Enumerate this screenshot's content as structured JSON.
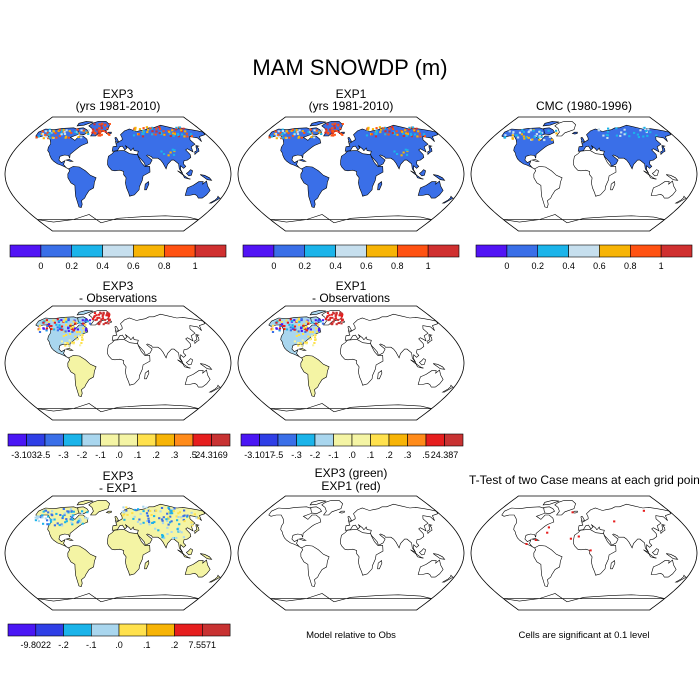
{
  "figure": {
    "title": "MAM SNOWDP (m)"
  },
  "colors": {
    "scale6": [
      "#5214f5",
      "#3a6fe8",
      "#1bb4ea",
      "#c6dfee",
      "#f7b406",
      "#ff5212",
      "#d03030"
    ],
    "diff13": [
      "#4a16f4",
      "#2f3fe6",
      "#3a6fe8",
      "#3a8fec",
      "#1bb4ea",
      "#a9d6ee",
      "#f4f4a4",
      "#ffe14d",
      "#f7b406",
      "#ff8b1a",
      "#ff5212",
      "#e61e1e",
      "#c83232"
    ],
    "diff11": [
      "#4a16f4",
      "#2f3fe6",
      "#3a6fe8",
      "#1bb4ea",
      "#a9d6ee",
      "#f4f4a4",
      "#ffe14d",
      "#f7b406",
      "#ff8b1a",
      "#e61e1e",
      "#c83232"
    ],
    "land_blue": "#3a6fe8",
    "land_yellow": "#f4f4a4"
  },
  "panels": [
    {
      "id": "p1",
      "title_lines": [
        "EXP3",
        "(yrs 1981-2010)"
      ],
      "fill": "blue"
    },
    {
      "id": "p2",
      "title_lines": [
        "EXP1",
        "(yrs 1981-2010)"
      ],
      "fill": "blue"
    },
    {
      "id": "p3",
      "title_lines": [
        "CMC (1980-1996)"
      ],
      "fill": "blue-nh"
    },
    {
      "id": "p4",
      "title_lines": [
        "EXP3",
        "- Observations"
      ],
      "fill": "nh-diff"
    },
    {
      "id": "p5",
      "title_lines": [
        "EXP1",
        "- Observations"
      ],
      "fill": "nh-diff"
    },
    {
      "id": "p7",
      "title_lines": [
        "EXP3",
        "- EXP1"
      ],
      "fill": "yellow"
    },
    {
      "id": "p8",
      "title_lines": [
        "EXP3 (green)",
        "EXP1 (red)"
      ],
      "fill": "none"
    },
    {
      "id": "p9",
      "title_lines": [
        "T-Test of two Case means at each grid point"
      ],
      "fill": "ttest"
    }
  ],
  "colorbars": [
    {
      "id": "cb1",
      "labels": [
        "0",
        "0.2",
        "0.4",
        "0.6",
        "0.8",
        "1"
      ]
    },
    {
      "id": "cb2",
      "labels": [
        "0",
        "0.2",
        "0.4",
        "0.6",
        "0.8",
        "1"
      ]
    },
    {
      "id": "cb3",
      "labels": [
        "0",
        "0.2",
        "0.4",
        "0.6",
        "0.8",
        "1"
      ]
    },
    {
      "id": "cb4",
      "labels": [
        "-3.1032",
        "-.5",
        "-.3",
        "-.2",
        "-.1",
        ".0",
        ".1",
        ".2",
        ".3",
        ".5",
        "24.3169"
      ]
    },
    {
      "id": "cb5",
      "labels": [
        "-3.1017",
        "-.5",
        "-.3",
        "-.2",
        "-.1",
        ".0",
        ".1",
        ".2",
        ".3",
        ".5",
        "24.387"
      ]
    },
    {
      "id": "cb7",
      "labels": [
        "-9.8022",
        "-.2",
        "-.1",
        ".0",
        ".1",
        ".2",
        "7.5571"
      ]
    }
  ],
  "notes": {
    "model_relative": "Model relative to Obs",
    "significance": "Cells are significant at 0.1 level"
  },
  "chart_data": [
    {
      "type": "heatmap",
      "title": "EXP3 (yrs 1981-2010)",
      "levels": [
        0,
        0.2,
        0.4,
        0.6,
        0.8,
        1
      ]
    },
    {
      "type": "heatmap",
      "title": "EXP1 (yrs 1981-2010)",
      "levels": [
        0,
        0.2,
        0.4,
        0.6,
        0.8,
        1
      ]
    },
    {
      "type": "heatmap",
      "title": "CMC (1980-1996)",
      "levels": [
        0,
        0.2,
        0.4,
        0.6,
        0.8,
        1
      ]
    },
    {
      "type": "heatmap",
      "title": "EXP3 - Observations",
      "min": -3.1032,
      "max": 24.3169,
      "levels": [
        -0.5,
        -0.3,
        -0.2,
        -0.1,
        0,
        0.1,
        0.2,
        0.3,
        0.5
      ]
    },
    {
      "type": "heatmap",
      "title": "EXP1 - Observations",
      "min": -3.1017,
      "max": 24.387,
      "levels": [
        -0.5,
        -0.3,
        -0.2,
        -0.1,
        0,
        0.1,
        0.2,
        0.3,
        0.5
      ]
    },
    {
      "type": "heatmap",
      "title": "EXP3 - EXP1",
      "min": -9.8022,
      "max": 7.5571,
      "levels": [
        -0.2,
        -0.1,
        0,
        0.1,
        0.2
      ]
    },
    {
      "type": "heatmap",
      "title": "EXP3 (green) EXP1 (red)"
    },
    {
      "type": "heatmap",
      "title": "T-Test of two Case means at each grid point"
    }
  ]
}
